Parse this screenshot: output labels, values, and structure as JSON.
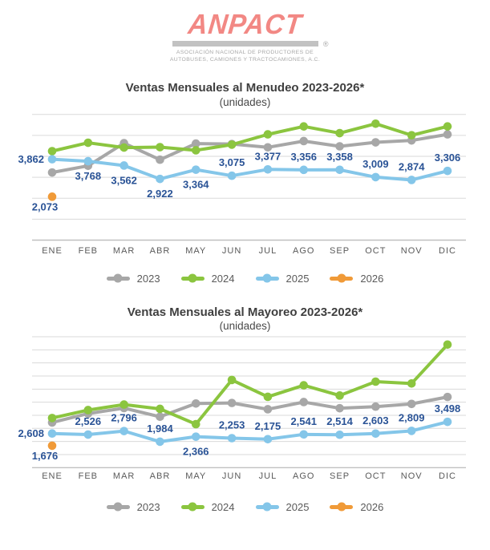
{
  "page": {
    "background": "#FFFFFF"
  },
  "logo": {
    "brand": "ANPACT",
    "registered_mark": "®",
    "tagline_line1": "ASOCIACIÓN NACIONAL DE PRODUCTORES DE",
    "tagline_line2": "AUTOBUSES, CAMIONES Y TRACTOCAMIONES, A.C.",
    "brand_color": "#F28884",
    "bar_color": "#C2C2C2",
    "tagline_color": "#A8A8A8"
  },
  "colors": {
    "value_label": "#2A5396",
    "axis_text": "#5A5A5A",
    "gridline": "#DADADA",
    "axis_line": "#C0C0C0",
    "title_text": "#3F3F3F",
    "series_2023": "#A7A7A7",
    "series_2024": "#8BC53F",
    "series_2025": "#84C6E9",
    "series_2026": "#F09A38"
  },
  "chart_data": [
    {
      "type": "line",
      "title": "Ventas Mensuales al Menudeo 2023-2026*",
      "subtitle": "(unidades)",
      "categories": [
        "ENE",
        "FEB",
        "MAR",
        "ABR",
        "MAY",
        "JUN",
        "JUL",
        "AGO",
        "SEP",
        "OCT",
        "NOV",
        "DIC"
      ],
      "ylim": [
        0,
        6000
      ],
      "grid_step": 1000,
      "grid": true,
      "legend_position": "bottom",
      "series": [
        {
          "name": "2023",
          "color": "#A7A7A7",
          "estimated": true,
          "data_labels": false,
          "values": [
            3230,
            3550,
            4630,
            3840,
            4610,
            4590,
            4430,
            4730,
            4480,
            4670,
            4760,
            5050
          ]
        },
        {
          "name": "2024",
          "color": "#8BC53F",
          "estimated": true,
          "data_labels": false,
          "values": [
            4250,
            4650,
            4420,
            4440,
            4290,
            4560,
            5050,
            5430,
            5110,
            5560,
            5010,
            5430
          ]
        },
        {
          "name": "2025",
          "color": "#84C6E9",
          "estimated": false,
          "data_labels": true,
          "values": [
            3862,
            3768,
            3562,
            2922,
            3364,
            3075,
            3377,
            3356,
            3358,
            3009,
            2874,
            3306
          ],
          "label_placements": [
            "left",
            "below",
            "below",
            "below",
            "below",
            "above",
            "above",
            "above",
            "above",
            "above",
            "above",
            "above"
          ]
        },
        {
          "name": "2026",
          "color": "#F09A38",
          "estimated": false,
          "data_labels": true,
          "values": [
            2073,
            null,
            null,
            null,
            null,
            null,
            null,
            null,
            null,
            null,
            null,
            null
          ],
          "label_placements": [
            "below-left",
            null,
            null,
            null,
            null,
            null,
            null,
            null,
            null,
            null,
            null,
            null
          ]
        }
      ]
    },
    {
      "type": "line",
      "title": "Ventas Mensuales al Mayoreo 2023-2026*",
      "subtitle": "(unidades)",
      "categories": [
        "ENE",
        "FEB",
        "MAR",
        "ABR",
        "MAY",
        "JUN",
        "JUL",
        "AGO",
        "SEP",
        "OCT",
        "NOV",
        "DIC"
      ],
      "ylim": [
        0,
        10000
      ],
      "grid_step": 1000,
      "grid": true,
      "legend_position": "bottom",
      "series": [
        {
          "name": "2023",
          "color": "#A7A7A7",
          "estimated": true,
          "data_labels": false,
          "values": [
            3450,
            4130,
            4550,
            3890,
            4900,
            4940,
            4460,
            5010,
            4540,
            4660,
            4870,
            5400
          ]
        },
        {
          "name": "2024",
          "color": "#8BC53F",
          "estimated": true,
          "data_labels": false,
          "values": [
            3790,
            4400,
            4820,
            4490,
            3320,
            6700,
            5410,
            6290,
            5510,
            6570,
            6430,
            9400
          ]
        },
        {
          "name": "2025",
          "color": "#84C6E9",
          "estimated": false,
          "data_labels": true,
          "values": [
            2608,
            2526,
            2796,
            1984,
            2366,
            2253,
            2175,
            2541,
            2514,
            2603,
            2809,
            3498
          ],
          "label_placements": [
            "left",
            "above",
            "above",
            "above",
            "below",
            "above",
            "above",
            "above",
            "above",
            "above",
            "above",
            "above"
          ]
        },
        {
          "name": "2026",
          "color": "#F09A38",
          "estimated": false,
          "data_labels": true,
          "values": [
            1676,
            null,
            null,
            null,
            null,
            null,
            null,
            null,
            null,
            null,
            null,
            null
          ],
          "label_placements": [
            "below-left",
            null,
            null,
            null,
            null,
            null,
            null,
            null,
            null,
            null,
            null,
            null
          ]
        }
      ]
    }
  ]
}
